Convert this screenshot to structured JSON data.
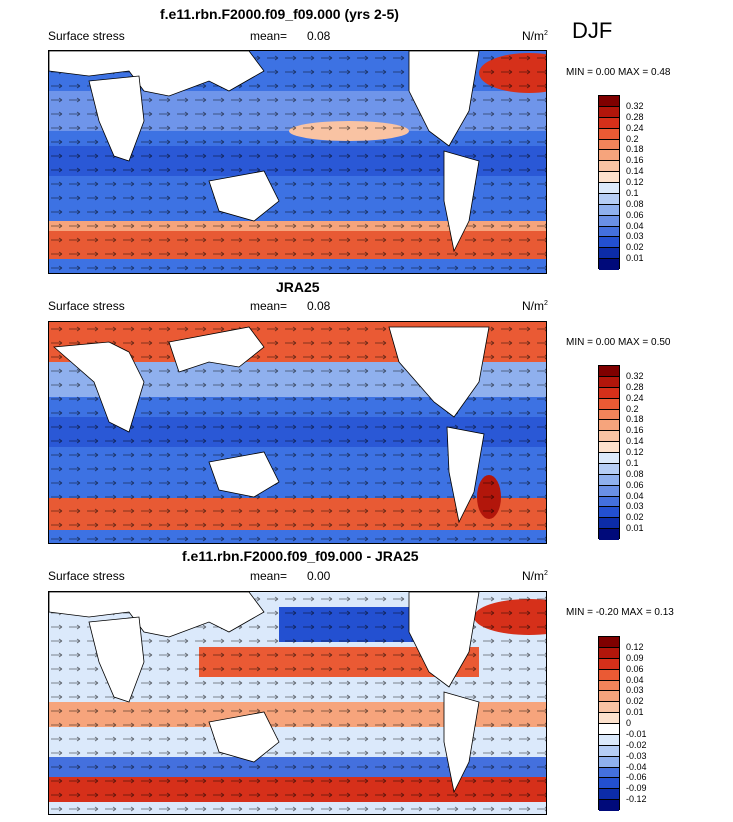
{
  "season": "DJF",
  "panels": [
    {
      "title": "f.e11.rbn.F2000.f09_f09.000 (yrs 2-5)",
      "left_label": "Surface stress",
      "mean_label": "mean=",
      "mean_value": "0.08",
      "units": "N/m",
      "units_sup": "2",
      "minmax": "MIN =   0.00 MAX =   0.48",
      "colorbar": {
        "labels": [
          "0.32",
          "0.28",
          "0.24",
          "0.2",
          "0.18",
          "0.16",
          "0.14",
          "0.12",
          "0.1",
          "0.08",
          "0.06",
          "0.04",
          "0.03",
          "0.02",
          "0.01"
        ],
        "colors": [
          "#7f0000",
          "#b2160b",
          "#d6301a",
          "#ea5a34",
          "#f3845a",
          "#f6a47c",
          "#f9c3a3",
          "#fde1cc",
          "#dbe9fb",
          "#b5cdf5",
          "#8fb0ee",
          "#6a90e6",
          "#4470de",
          "#2350d1",
          "#0c2ca8",
          "#000a7a"
        ]
      }
    },
    {
      "title": "JRA25",
      "left_label": "Surface stress",
      "mean_label": "mean=",
      "mean_value": "0.08",
      "units": "N/m",
      "units_sup": "2",
      "minmax": "MIN =   0.00 MAX =   0.50",
      "colorbar": {
        "labels": [
          "0.32",
          "0.28",
          "0.24",
          "0.2",
          "0.18",
          "0.16",
          "0.14",
          "0.12",
          "0.1",
          "0.08",
          "0.06",
          "0.04",
          "0.03",
          "0.02",
          "0.01"
        ],
        "colors": [
          "#7f0000",
          "#b2160b",
          "#d6301a",
          "#ea5a34",
          "#f3845a",
          "#f6a47c",
          "#f9c3a3",
          "#fde1cc",
          "#dbe9fb",
          "#b5cdf5",
          "#8fb0ee",
          "#6a90e6",
          "#4470de",
          "#2350d1",
          "#0c2ca8",
          "#000a7a"
        ]
      }
    },
    {
      "title": "f.e11.rbn.F2000.f09_f09.000 - JRA25",
      "left_label": "Surface stress",
      "mean_label": "mean=",
      "mean_value": "0.00",
      "units": "N/m",
      "units_sup": "2",
      "minmax": "MIN =  -0.20 MAX =   0.13",
      "colorbar": {
        "labels": [
          "0.12",
          "0.09",
          "0.06",
          "0.04",
          "0.03",
          "0.02",
          "0.01",
          "0",
          "-0.01",
          "-0.02",
          "-0.03",
          "-0.04",
          "-0.06",
          "-0.09",
          "-0.12"
        ],
        "colors": [
          "#7f0000",
          "#b2160b",
          "#d6301a",
          "#ea5a34",
          "#f3845a",
          "#f6a47c",
          "#f9c3a3",
          "#fde1cc",
          "#ffffff",
          "#dbe9fb",
          "#b5cdf5",
          "#8fb0ee",
          "#4470de",
          "#2350d1",
          "#0c2ca8",
          "#000a7a"
        ]
      }
    }
  ]
}
